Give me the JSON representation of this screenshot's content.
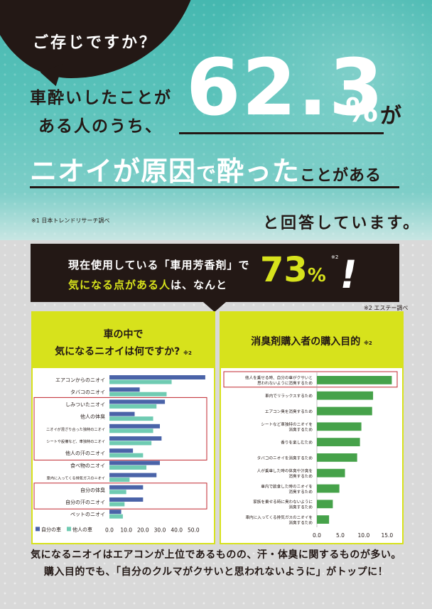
{
  "hero": {
    "question": "ご存じですか？",
    "lead_line1": "車酔いしたことが",
    "lead_line2": "ある人のうち、",
    "big_number": "62.3",
    "big_unit": "%",
    "footnote_mark1": "※1",
    "ga": "が",
    "reason_part1": "ニオイが原因",
    "reason_part2": "で",
    "reason_part3": "酔った",
    "reason_part4": "ことがある",
    "source_note": "※1 日本トレンドリサーチ調べ",
    "answered": "と回答しています。"
  },
  "band": {
    "line1": "現在使用している「車用芳香剤」で",
    "line2_highlight": "気になる点がある人",
    "line2_rest": "は、なんと",
    "value": "73",
    "unit": "%",
    "footnote_mark2": "※2",
    "exclaim": "!",
    "source_note": "※2 エステー調べ"
  },
  "left_panel": {
    "title_line1": "車の中で",
    "title_line2": "気になるニオイは何ですか?",
    "title_mark": "※2"
  },
  "right_panel": {
    "title": "消臭剤購入者の購入目的",
    "title_mark": "※2"
  },
  "summary": {
    "line1": "気になるニオイはエアコンが上位であるものの、汗・体臭に関するものが多い。",
    "line2": "購入目的でも、「自分のクルマがクサいと思われないように」がトップに！"
  },
  "colors": {
    "teal": "#45b8b0",
    "dark": "#231815",
    "yellow": "#d7e21c",
    "bar_own": "#4a63a8",
    "bar_other": "#6fcbb2",
    "bar_green": "#46a24a",
    "highlight": "#c0262d"
  },
  "chart_data": [
    {
      "type": "bar",
      "orientation": "horizontal",
      "categories": [
        "エアコンからのニオイ",
        "タバコのニオイ",
        "しみついたニオイ",
        "他人の体臭",
        "ニオイが混ざり合った独特のニオイ",
        "シートや設備など、車独特のニオイ",
        "他人の汗のニオイ",
        "食べ物のニオイ",
        "車内に入ってくる排気ガスのニオイ",
        "自分の体臭",
        "自分の汗のニオイ",
        "ペットのニオイ"
      ],
      "series": [
        {
          "name": "自分の車",
          "values": [
            57,
            18,
            33,
            15,
            30,
            31,
            14,
            30,
            28,
            20,
            20,
            7
          ]
        },
        {
          "name": "他人の車",
          "values": [
            37,
            34,
            28,
            26,
            26,
            25,
            20,
            22,
            12,
            10,
            9,
            8
          ]
        }
      ],
      "highlighted": [
        "しみついたニオイ",
        "他人の体臭",
        "ニオイが混ざり合った独特のニオイ",
        "シートや設備など、車独特のニオイ",
        "他人の汗のニオイ",
        "自分の体臭",
        "自分の汗のニオイ"
      ],
      "xticks": [
        "0.0",
        "10.0",
        "20.0",
        "30.0",
        "40.0",
        "50.0"
      ],
      "xlim": [
        0,
        60
      ],
      "legend": "bottom-left"
    },
    {
      "type": "bar",
      "orientation": "horizontal",
      "categories": [
        [
          "他人を乗せる時、自分の車がクサいと",
          "思われないように消臭するため"
        ],
        [
          "車内でリラックスするため"
        ],
        [
          "エアコン臭を消臭するため"
        ],
        [
          "シートなど車独特のニオイを",
          "消臭するため"
        ],
        [
          "香りを楽しむため"
        ],
        [
          "タバコのニオイを消臭するため"
        ],
        [
          "人が乗車した時の体臭や汗臭を",
          "消臭するため"
        ],
        [
          "車内で飲食した時のニオイを",
          "消臭するため"
        ],
        [
          "家族を乗せる時に臭わないように",
          "消臭するため"
        ],
        [
          "車内に入ってくる排気ガスのニオイを",
          "消臭するため"
        ]
      ],
      "values": [
        16.0,
        12.0,
        11.8,
        9.5,
        9.2,
        8.6,
        6.0,
        4.8,
        3.4,
        2.6
      ],
      "highlighted_index": 0,
      "xticks": [
        "0.0",
        "5.0",
        "10.0",
        "15.0"
      ],
      "xlim": [
        0,
        17
      ]
    }
  ]
}
